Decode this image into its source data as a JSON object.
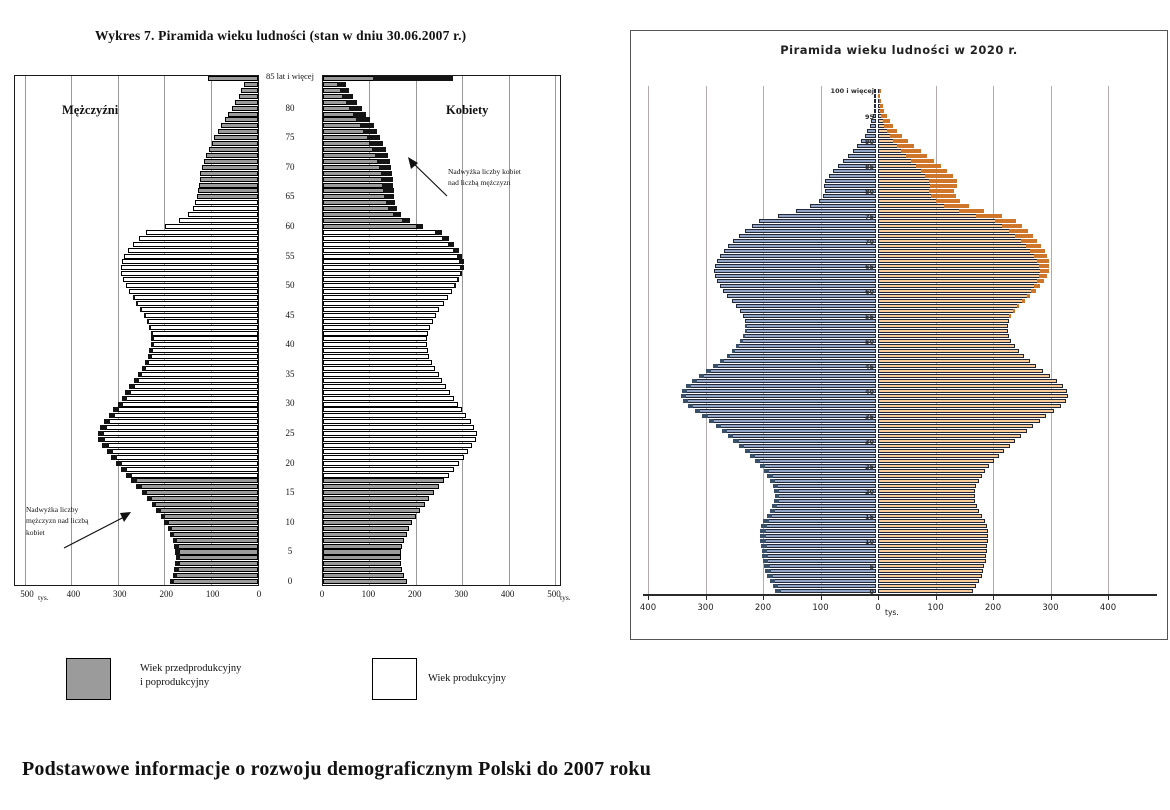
{
  "heading": "Podstawowe informacje o rozwoju demograficznym Polski do 2007 roku",
  "chart_data": [
    {
      "type": "bar",
      "variant": "population-pyramid",
      "title": "Wykres 7. Piramida wieku ludności (stan w dniu 30.06.2007 r.)",
      "left_label": "Mężczyźni",
      "right_label": "Kobiety",
      "top_age_label": "85 lat i więcej",
      "age_ticks": [
        "0",
        "5",
        "10",
        "15",
        "20",
        "25",
        "30",
        "35",
        "40",
        "45",
        "50",
        "55",
        "60",
        "65",
        "70",
        "75",
        "80"
      ],
      "x_ticks_left": [
        "500",
        "400",
        "300",
        "200",
        "100",
        "0"
      ],
      "x_ticks_right": [
        "0",
        "100",
        "200",
        "300",
        "400",
        "500"
      ],
      "x_unit": "tys.",
      "xmax": 500,
      "grid": true,
      "male_productive_range": [
        18,
        64
      ],
      "female_productive_range": [
        18,
        59
      ],
      "ages": "0-84 single years, last value = 85 and more",
      "male": [
        190,
        184,
        180,
        178,
        177,
        178,
        180,
        184,
        189,
        195,
        202,
        210,
        219,
        229,
        240,
        251,
        262,
        273,
        284,
        295,
        306,
        316,
        326,
        336,
        344,
        345,
        340,
        332,
        322,
        312,
        302,
        294,
        286,
        277,
        268,
        259,
        251,
        244,
        238,
        234,
        231,
        230,
        231,
        234,
        239,
        246,
        254,
        262,
        270,
        278,
        285,
        291,
        295,
        296,
        294,
        289,
        281,
        270,
        257,
        242,
        200,
        170,
        150,
        140,
        135,
        132,
        130,
        128,
        126,
        124,
        121,
        117,
        112,
        106,
        100,
        94,
        87,
        80,
        72,
        64,
        56,
        49,
        42,
        36,
        30,
        108
      ],
      "female": [
        180,
        175,
        171,
        169,
        168,
        169,
        171,
        175,
        180,
        186,
        192,
        200,
        209,
        219,
        229,
        240,
        250,
        261,
        272,
        283,
        293,
        303,
        313,
        322,
        330,
        331,
        326,
        318,
        309,
        299,
        290,
        282,
        274,
        266,
        257,
        249,
        241,
        235,
        229,
        226,
        224,
        224,
        226,
        230,
        236,
        243,
        251,
        260,
        269,
        278,
        286,
        293,
        299,
        303,
        303,
        300,
        293,
        283,
        271,
        257,
        216,
        187,
        168,
        159,
        155,
        153,
        152,
        151,
        150,
        149,
        147,
        144,
        140,
        135,
        129,
        123,
        116,
        109,
        101,
        92,
        83,
        74,
        65,
        57,
        49,
        280
      ],
      "annotations": [
        {
          "text": "Nadwyżka liczby kobiet nad liczbą mężczyzn"
        },
        {
          "text": "Nadwyżka liczby mężczyzn nad liczbą kobiet"
        }
      ],
      "legend": [
        {
          "label": "Wiek przedprodukcyjny\ni poprodukcyjny",
          "color": "#9b9b9b"
        },
        {
          "label": "Wiek produkcyjny",
          "color": "#ffffff"
        }
      ],
      "colors": {
        "gray": "#9b9b9b",
        "white": "#ffffff",
        "surplus": "#141414",
        "outline": "#000000"
      }
    },
    {
      "type": "bar",
      "variant": "population-pyramid",
      "title": "Piramida wieku ludności w 2020 r.",
      "top_age_label": "100 i więcej",
      "age_ticks": [
        "0",
        "5",
        "10",
        "15",
        "20",
        "25",
        "30",
        "35",
        "40",
        "45",
        "50",
        "55",
        "60",
        "65",
        "70",
        "75",
        "80",
        "85",
        "90",
        "95"
      ],
      "x_ticks": [
        "400",
        "300",
        "200",
        "100",
        "0",
        "100",
        "200",
        "300",
        "400"
      ],
      "x_unit": "tys.",
      "xmax": 400,
      "grid": true,
      "ages": "0-99 single years, last value = 100 and more",
      "male": [
        175,
        180,
        185,
        190,
        193,
        195,
        197,
        198,
        199,
        200,
        201,
        202,
        202,
        200,
        196,
        190,
        185,
        181,
        178,
        176,
        177,
        180,
        184,
        189,
        195,
        202,
        210,
        219,
        228,
        238,
        248,
        258,
        268,
        278,
        290,
        302,
        315,
        327,
        336,
        340,
        337,
        330,
        320,
        308,
        295,
        283,
        271,
        260,
        251,
        243,
        236,
        231,
        228,
        227,
        228,
        231,
        236,
        243,
        251,
        259,
        266,
        272,
        277,
        280,
        281,
        280,
        277,
        272,
        265,
        257,
        248,
        238,
        227,
        215,
        203,
        170,
        140,
        115,
        100,
        92,
        88,
        90,
        88,
        82,
        74,
        66,
        57,
        48,
        40,
        33,
        26,
        20,
        15,
        11,
        8,
        6,
        4,
        3,
        2,
        1,
        2
      ],
      "female": [
        166,
        171,
        176,
        180,
        183,
        185,
        187,
        188,
        189,
        190,
        191,
        192,
        192,
        190,
        186,
        181,
        176,
        172,
        169,
        168,
        168,
        171,
        175,
        180,
        186,
        193,
        201,
        210,
        219,
        229,
        239,
        249,
        259,
        269,
        281,
        293,
        306,
        318,
        327,
        331,
        328,
        321,
        311,
        299,
        287,
        275,
        264,
        254,
        245,
        238,
        232,
        228,
        226,
        226,
        228,
        232,
        238,
        246,
        255,
        265,
        274,
        282,
        289,
        294,
        297,
        298,
        297,
        294,
        290,
        284,
        277,
        269,
        260,
        250,
        240,
        215,
        185,
        158,
        142,
        135,
        132,
        138,
        137,
        130,
        120,
        110,
        98,
        86,
        74,
        62,
        52,
        42,
        33,
        26,
        20,
        15,
        11,
        8,
        6,
        4,
        6
      ],
      "colors": {
        "male": "#93a6c7",
        "male_surplus": "#3a5068",
        "female": "#f7ca97",
        "female_surplus": "#d0762a",
        "outline": "#232838"
      }
    }
  ]
}
